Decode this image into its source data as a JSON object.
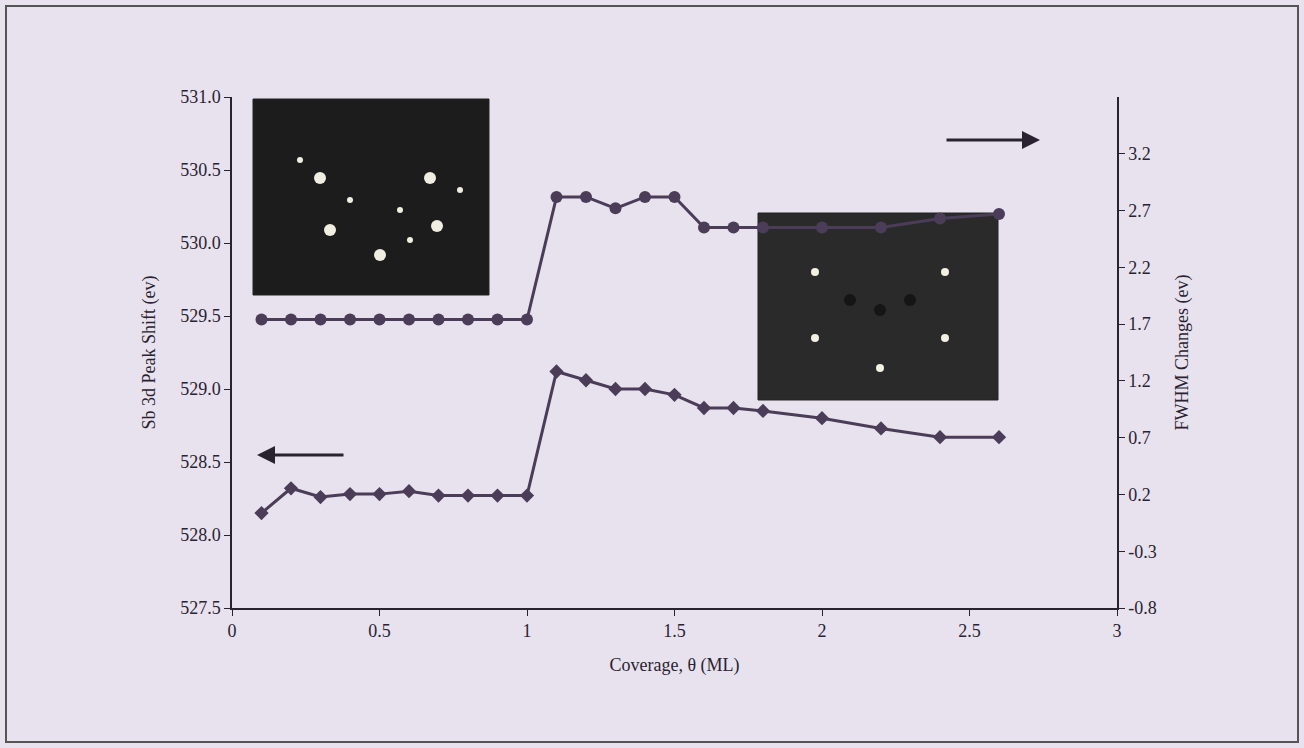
{
  "chart_data": {
    "type": "line",
    "x_label": "Coverage, θ (ML)",
    "y_label": "Sb 3d Peak Shift (ev)",
    "y2_label": "FWHM Changes (ev)",
    "xlim": [
      0,
      3
    ],
    "xticks": [
      0,
      0.5,
      1,
      1.5,
      2,
      2.5,
      3
    ],
    "ylim": [
      527.5,
      531.0
    ],
    "yticks": [
      527.5,
      {
        "value": 528,
        "label": "528.0"
      },
      528.5,
      {
        "value": 529,
        "label": "529.0"
      },
      529.5,
      {
        "value": 530,
        "label": "530.0"
      },
      530.5,
      {
        "value": 531,
        "label": "531.0"
      }
    ],
    "y2lim": [
      -0.8,
      3.7
    ],
    "y2ticks": [
      -0.8,
      -0.3,
      0.2,
      0.7,
      1.2,
      1.7,
      2.2,
      2.7,
      3.2
    ],
    "grid": false,
    "series": [
      {
        "color": "#4b3d58",
        "marker": "diamond",
        "line_style": "solid",
        "x": [
          0.1,
          0.2,
          0.3,
          0.4,
          0.5,
          0.6,
          0.7,
          0.8,
          0.9,
          1.0,
          1.1,
          1.2,
          1.3,
          1.4,
          1.5,
          1.6,
          1.7,
          1.8,
          2.0,
          2.2,
          2.4,
          2.6
        ],
        "values": [
          528.15,
          528.32,
          528.26,
          528.28,
          528.28,
          528.3,
          528.27,
          528.27,
          528.27,
          528.27,
          529.12,
          529.06,
          529.0,
          529.0,
          528.96,
          528.87,
          528.87,
          528.85,
          528.8,
          528.73,
          528.67,
          528.67
        ]
      },
      {
        "color": "#4b3d58",
        "marker": "circle",
        "line_style": "solid",
        "axis": "y2",
        "x": [
          0.1,
          0.2,
          0.3,
          0.4,
          0.5,
          0.6,
          0.7,
          0.8,
          0.9,
          1.0,
          1.1,
          1.2,
          1.3,
          1.4,
          1.5,
          1.6,
          1.7,
          1.8,
          2.0,
          2.2,
          2.4,
          2.6
        ],
        "values": [
          1.74,
          1.74,
          1.74,
          1.74,
          1.74,
          1.74,
          1.74,
          1.74,
          1.74,
          1.74,
          2.82,
          2.82,
          2.72,
          2.82,
          2.82,
          2.55,
          2.55,
          2.55,
          2.55,
          2.55,
          2.63,
          2.67
        ]
      }
    ]
  }
}
